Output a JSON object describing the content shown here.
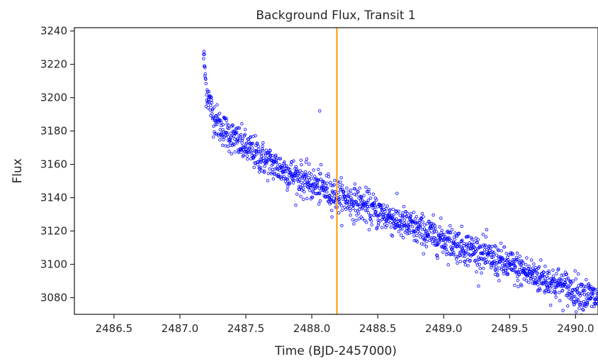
{
  "chart_data": {
    "type": "scatter",
    "title": "Background Flux, Transit 1",
    "xlabel": "Time (BJD-2457000)",
    "ylabel": "Flux",
    "xlim": [
      2486.2,
      2490.17
    ],
    "ylim": [
      3070,
      3242
    ],
    "xticks": [
      2486.5,
      2487.0,
      2487.5,
      2488.0,
      2488.5,
      2489.0,
      2489.5,
      2490.0
    ],
    "xtick_labels": [
      "2486.5",
      "2487.0",
      "2487.5",
      "2488.0",
      "2488.5",
      "2489.0",
      "2489.5",
      "2490.0"
    ],
    "yticks": [
      3080,
      3100,
      3120,
      3140,
      3160,
      3180,
      3200,
      3220,
      3240
    ],
    "ytick_labels": [
      "3080",
      "3100",
      "3120",
      "3140",
      "3160",
      "3180",
      "3200",
      "3220",
      "3240"
    ],
    "grid": false,
    "legend": "none",
    "marker_color": "#0000ff",
    "vline": {
      "x": 2488.19,
      "color": "#ff9900"
    },
    "series": [
      {
        "trend": [
          [
            2487.18,
            3225
          ],
          [
            2487.2,
            3205
          ],
          [
            2487.25,
            3190
          ],
          [
            2487.3,
            3183
          ],
          [
            2487.4,
            3176
          ],
          [
            2487.5,
            3170
          ],
          [
            2487.6,
            3165
          ],
          [
            2487.7,
            3160
          ],
          [
            2487.8,
            3156
          ],
          [
            2487.9,
            3152
          ],
          [
            2488.0,
            3148
          ],
          [
            2488.1,
            3145
          ],
          [
            2488.2,
            3141
          ],
          [
            2488.3,
            3138
          ],
          [
            2488.4,
            3135
          ],
          [
            2488.5,
            3131
          ],
          [
            2488.6,
            3128
          ],
          [
            2488.7,
            3124
          ],
          [
            2488.8,
            3121
          ],
          [
            2488.9,
            3118
          ],
          [
            2489.0,
            3115
          ],
          [
            2489.1,
            3112
          ],
          [
            2489.2,
            3109
          ],
          [
            2489.3,
            3106
          ],
          [
            2489.4,
            3102
          ],
          [
            2489.5,
            3099
          ],
          [
            2489.6,
            3096
          ],
          [
            2489.7,
            3093
          ],
          [
            2489.8,
            3090
          ],
          [
            2489.9,
            3087
          ],
          [
            2490.0,
            3084
          ],
          [
            2490.1,
            3081
          ],
          [
            2490.17,
            3079
          ]
        ],
        "x_range": [
          2487.18,
          2490.17
        ],
        "n_points": 1500,
        "scatter_sd": 5,
        "outliers": [
          [
            2487.18,
            3243
          ],
          [
            2487.18,
            3226
          ],
          [
            2487.19,
            3218
          ],
          [
            2488.06,
            3192
          ]
        ]
      }
    ]
  }
}
